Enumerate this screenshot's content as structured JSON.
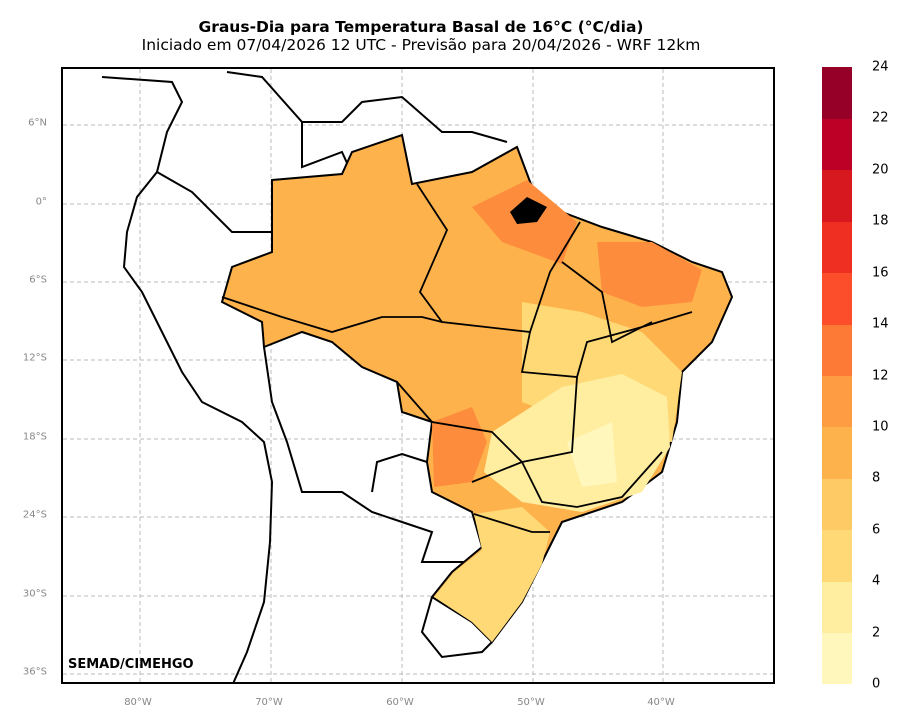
{
  "title": {
    "line1": "Graus-Dia para Temperatura Basal de 16°C (°C/dia)",
    "line2": "Iniciado em 07/04/2026 12 UTC - Previsão para 20/04/2026 - WRF 12km"
  },
  "axes": {
    "lat_labels": [
      "6°N",
      "0°",
      "6°S",
      "12°S",
      "18°S",
      "24°S",
      "30°S",
      "36°S"
    ],
    "lon_labels": [
      "80°W",
      "70°W",
      "60°W",
      "50°W",
      "40°W"
    ]
  },
  "credit": "SEMAD/CIMEHGO",
  "colorbar": {
    "ticks": [
      "0",
      "2",
      "4",
      "6",
      "8",
      "10",
      "12",
      "14",
      "16",
      "18",
      "20",
      "22",
      "24"
    ],
    "colors": [
      "#fff7bc",
      "#ffeda0",
      "#fed976",
      "#feca66",
      "#feb24c",
      "#fd9c42",
      "#fd7a36",
      "#fc4e2a",
      "#ee2f22",
      "#d7191f",
      "#bd0026",
      "#960028"
    ]
  },
  "fill_colors": {
    "base": "#feb24c",
    "light": "#ffeda0",
    "lighter": "#fff7bc",
    "mid": "#fed976",
    "dark": "#fd8d3c"
  }
}
